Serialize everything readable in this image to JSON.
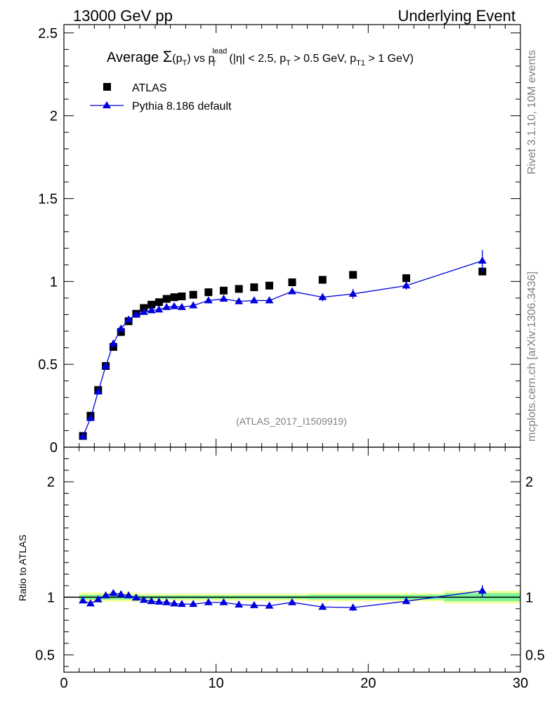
{
  "header": {
    "left": "13000 GeV pp",
    "right": "Underlying Event"
  },
  "side": {
    "rivet": "Rivet 3.1.10,  10M events",
    "mcplots": "mcplots.cern.ch [arXiv:1306.3436]"
  },
  "plot_title": {
    "prefix": "Average ",
    "sigma": "Σ",
    "p1": "(p",
    "t1": "T",
    "p2": ") vs p",
    "lead": "lead",
    "t2": "T",
    "p3": " (|η| < 2.5, p",
    "t3": "T",
    "p4": " > 0.5 GeV, p",
    "t4": "T1",
    "p5": " > 1 GeV)"
  },
  "watermark": "(ATLAS_2017_I1509919)",
  "ratio_ylabel": "Ratio to ATLAS",
  "chart_data": {
    "type": "scatter",
    "title": "Average Σ(pT) vs pT lead (|η| < 2.5, pT > 0.5 GeV, pT1 > 1 GeV)",
    "xlabel": "",
    "ylabel": "",
    "xlim": [
      0,
      30
    ],
    "ylim": [
      0,
      2.55
    ],
    "x_ticks": [
      0,
      10,
      20,
      30
    ],
    "x_tick_labels": [
      "0",
      "10",
      "20",
      "30"
    ],
    "y_ticks": [
      0,
      0.5,
      1,
      1.5,
      2,
      2.5
    ],
    "y_tick_labels": [
      "0",
      "0.5",
      "1",
      "1.5",
      "2",
      "2.5"
    ],
    "legend": {
      "position": "top-left",
      "entries": [
        "ATLAS",
        "Pythia 8.186 default"
      ]
    },
    "series": [
      {
        "name": "ATLAS",
        "style": "square-marker",
        "color": "#000000",
        "x": [
          1.25,
          1.75,
          2.25,
          2.75,
          3.25,
          3.75,
          4.25,
          4.75,
          5.25,
          5.75,
          6.25,
          6.75,
          7.25,
          7.75,
          8.5,
          9.5,
          10.5,
          11.5,
          12.5,
          13.5,
          15.0,
          17.0,
          19.0,
          22.5,
          27.5
        ],
        "values": [
          0.068,
          0.19,
          0.345,
          0.49,
          0.605,
          0.695,
          0.76,
          0.805,
          0.84,
          0.86,
          0.875,
          0.895,
          0.905,
          0.91,
          0.92,
          0.935,
          0.945,
          0.955,
          0.965,
          0.975,
          0.995,
          1.01,
          1.04,
          1.02,
          1.06
        ]
      },
      {
        "name": "Pythia 8.186 default",
        "style": "triangle-line",
        "color": "#0000dd",
        "x": [
          1.25,
          1.75,
          2.25,
          2.75,
          3.25,
          3.75,
          4.25,
          4.75,
          5.25,
          5.75,
          6.25,
          6.75,
          7.25,
          7.75,
          8.5,
          9.5,
          10.5,
          11.5,
          12.5,
          13.5,
          15.0,
          17.0,
          19.0,
          22.5,
          27.5
        ],
        "values": [
          0.065,
          0.175,
          0.335,
          0.49,
          0.625,
          0.715,
          0.77,
          0.8,
          0.815,
          0.825,
          0.83,
          0.845,
          0.85,
          0.845,
          0.855,
          0.885,
          0.895,
          0.88,
          0.885,
          0.885,
          0.94,
          0.905,
          0.925,
          0.975,
          1.125
        ],
        "errors": [
          0,
          0,
          0,
          0,
          0,
          0,
          0,
          0,
          0,
          0,
          0,
          0,
          0,
          0,
          0,
          0,
          0,
          0,
          0,
          0,
          0,
          0.025,
          0.03,
          0.025,
          0.065
        ]
      }
    ],
    "ratio": {
      "ylabel": "Ratio to ATLAS",
      "ylim": [
        0.35,
        2.3
      ],
      "y_ticks": [
        0.5,
        1,
        2
      ],
      "y_tick_labels": [
        "0.5",
        "1",
        "2"
      ],
      "values": [
        0.97,
        0.945,
        0.98,
        1.015,
        1.035,
        1.025,
        1.015,
        0.995,
        0.975,
        0.965,
        0.96,
        0.955,
        0.945,
        0.94,
        0.94,
        0.955,
        0.955,
        0.935,
        0.93,
        0.925,
        0.955,
        0.915,
        0.91,
        0.965,
        1.055
      ],
      "errors": [
        0,
        0,
        0,
        0,
        0,
        0,
        0,
        0,
        0,
        0,
        0,
        0,
        0,
        0,
        0,
        0,
        0,
        0,
        0,
        0,
        0,
        0.02,
        0.03,
        0.02,
        0.05
      ],
      "bands": [
        {
          "x_lo": 1.0,
          "x_hi": 5.0,
          "inner": 0.02,
          "outer": 0.04
        },
        {
          "x_lo": 5.0,
          "x_hi": 16.0,
          "inner": 0.015,
          "outer": 0.03
        },
        {
          "x_lo": 16.0,
          "x_hi": 25.0,
          "inner": 0.02,
          "outer": 0.035
        },
        {
          "x_lo": 25.0,
          "x_hi": 30.0,
          "inner": 0.035,
          "outer": 0.055
        }
      ]
    }
  },
  "colors": {
    "atlas": "#000000",
    "pythia": "#0000dd",
    "band_inner": "#7cf59c",
    "band_outer": "#f5ff99"
  }
}
